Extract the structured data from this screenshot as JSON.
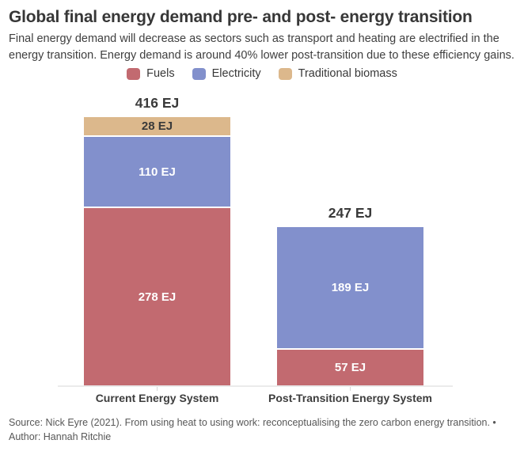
{
  "header": {
    "title": "Global final energy demand pre- and post- energy transition",
    "subtitle": "Final energy demand will decrease as sectors such as transport and heating are electrified in the energy transition. Energy demand is around 40% lower post-transition due to these efficiency gains."
  },
  "chart_data": {
    "type": "bar",
    "stacked": true,
    "unit": "EJ",
    "legend_position": "top",
    "grid": false,
    "y_axis_visible": false,
    "categories": [
      "Current Energy System",
      "Post-Transition Energy System"
    ],
    "series": [
      {
        "name": "Fuels",
        "color": "#c26a70",
        "label_color": "#ffffff",
        "values": [
          278,
          57
        ],
        "labels": [
          "278 EJ",
          "57 EJ"
        ]
      },
      {
        "name": "Electricity",
        "color": "#8290cc",
        "label_color": "#ffffff",
        "values": [
          110,
          189
        ],
        "labels": [
          "110 EJ",
          "189 EJ"
        ]
      },
      {
        "name": "Traditional biomass",
        "color": "#dcb88c",
        "label_color": "#3a3a3a",
        "values": [
          28,
          0
        ],
        "labels": [
          "28 EJ",
          ""
        ]
      }
    ],
    "totals": [
      416,
      247
    ],
    "total_labels": [
      "416 EJ",
      "247 EJ"
    ]
  },
  "footer": {
    "source": "Source: Nick Eyre (2021). From using heat to using work: reconceptualising the zero carbon energy transition. •",
    "author": "Author: Hannah Ritchie"
  }
}
